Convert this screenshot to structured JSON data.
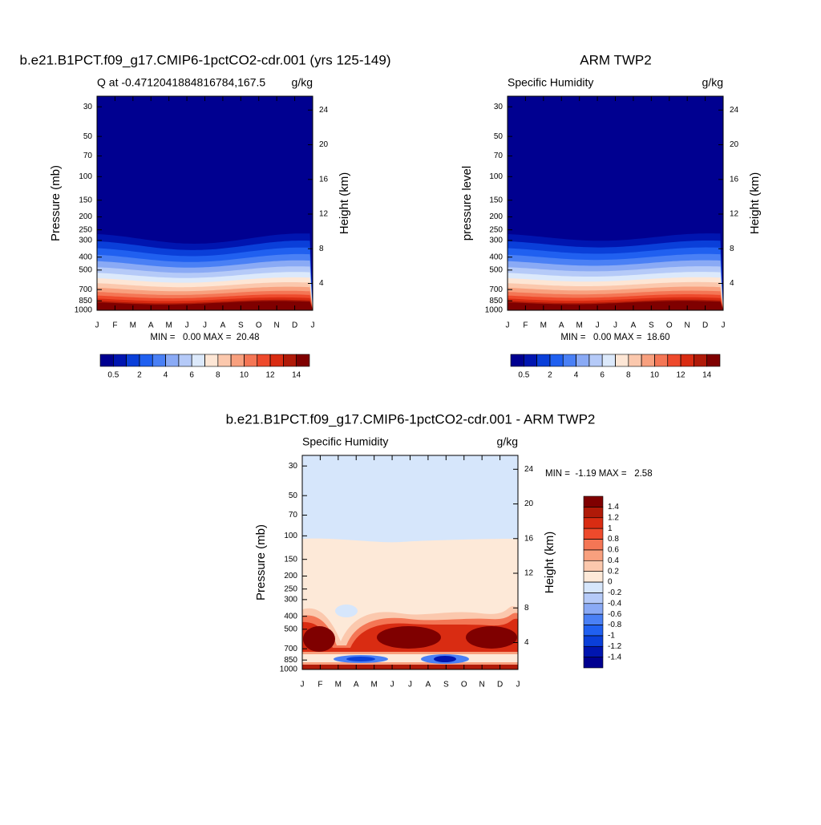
{
  "chart_data": [
    {
      "type": "contour",
      "title": "b.e21.B1PCT.f09_g17.CMIP6-1pctCO2-cdr.001 (yrs 125-149)",
      "subtitle": "Q at -0.4712041884816784,167.5",
      "units": "g/kg",
      "ylabel": "Pressure (mb)",
      "y2label": "Height (km)",
      "categories": [
        "J",
        "F",
        "M",
        "A",
        "M",
        "J",
        "J",
        "A",
        "S",
        "O",
        "N",
        "D",
        "J"
      ],
      "ylim": [
        1000,
        25
      ],
      "yticks": [
        30,
        50,
        70,
        100,
        150,
        200,
        250,
        300,
        400,
        500,
        700,
        850,
        1000
      ],
      "log_y": true,
      "y2lim": [
        0.9,
        25.6
      ],
      "y2ticks": [
        4,
        8,
        12,
        16,
        20,
        24
      ],
      "stats": "MIN =   0.00 MAX =  20.48",
      "colorbar": {
        "orientation": "horizontal",
        "levels": [
          0.5,
          1,
          2,
          3,
          4,
          5,
          6,
          7,
          8,
          9,
          10,
          11,
          12,
          13,
          14
        ],
        "ticks": [
          0.5,
          2,
          4,
          6,
          8,
          10,
          12,
          14
        ],
        "colors": [
          "#000090",
          "#0015b0",
          "#0a3fd9",
          "#2060f0",
          "#4a80f5",
          "#8aaaf5",
          "#b5caf8",
          "#dce9fb",
          "#fde6d5",
          "#fbc8ad",
          "#f8a07e",
          "#f47655",
          "#ee4a2c",
          "#d92c12",
          "#b01a08",
          "#7f0000"
        ]
      }
    },
    {
      "type": "contour",
      "title": "ARM TWP2",
      "subtitle": "Specific Humidity",
      "units": "g/kg",
      "ylabel": "pressure level",
      "y2label": "Height (km)",
      "categories": [
        "J",
        "F",
        "M",
        "A",
        "M",
        "J",
        "J",
        "A",
        "S",
        "O",
        "N",
        "D",
        "J"
      ],
      "ylim": [
        1000,
        25
      ],
      "yticks": [
        30,
        50,
        70,
        100,
        150,
        200,
        250,
        300,
        400,
        500,
        700,
        850,
        1000
      ],
      "log_y": true,
      "y2lim": [
        0.9,
        25.6
      ],
      "y2ticks": [
        4,
        8,
        12,
        16,
        20,
        24
      ],
      "stats": "MIN =   0.00 MAX =  18.60",
      "colorbar": {
        "orientation": "horizontal",
        "levels": [
          0.5,
          1,
          2,
          3,
          4,
          5,
          6,
          7,
          8,
          9,
          10,
          11,
          12,
          13,
          14
        ],
        "ticks": [
          0.5,
          2,
          4,
          6,
          8,
          10,
          12,
          14
        ],
        "colors": [
          "#000090",
          "#0015b0",
          "#0a3fd9",
          "#2060f0",
          "#4a80f5",
          "#8aaaf5",
          "#b5caf8",
          "#dce9fb",
          "#fde6d5",
          "#fbc8ad",
          "#f8a07e",
          "#f47655",
          "#ee4a2c",
          "#d92c12",
          "#b01a08",
          "#7f0000"
        ]
      }
    },
    {
      "type": "contour-diff",
      "title": "b.e21.B1PCT.f09_g17.CMIP6-1pctCO2-cdr.001 - ARM TWP2",
      "subtitle": "Specific Humidity",
      "units": "g/kg",
      "ylabel": "Pressure (mb)",
      "y2label": "Height (km)",
      "categories": [
        "J",
        "F",
        "M",
        "A",
        "M",
        "J",
        "J",
        "A",
        "S",
        "O",
        "N",
        "D",
        "J"
      ],
      "ylim": [
        1000,
        25
      ],
      "yticks": [
        30,
        50,
        70,
        100,
        150,
        200,
        250,
        300,
        400,
        500,
        700,
        850,
        1000
      ],
      "log_y": true,
      "y2lim": [
        0.9,
        25.6
      ],
      "y2ticks": [
        4,
        8,
        12,
        16,
        20,
        24
      ],
      "stats": "MIN =  -1.19 MAX =   2.58",
      "colorbar": {
        "orientation": "vertical",
        "levels": [
          -1.4,
          -1.2,
          -1,
          -0.8,
          -0.6,
          -0.4,
          -0.2,
          0,
          0.2,
          0.4,
          0.6,
          0.8,
          1,
          1.2,
          1.4
        ],
        "colors": [
          "#000090",
          "#0015b0",
          "#0a3fd9",
          "#2060f0",
          "#4a80f5",
          "#8aaaf5",
          "#b5caf8",
          "#d6e6fb",
          "#fde9d8",
          "#fbc8ad",
          "#f8a07e",
          "#f47655",
          "#ee4a2c",
          "#d92c12",
          "#b01a08",
          "#7f0000"
        ]
      }
    }
  ]
}
